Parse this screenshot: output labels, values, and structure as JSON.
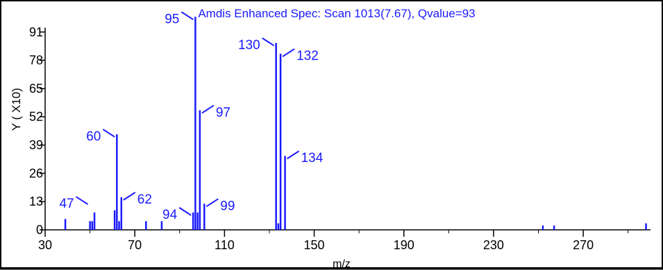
{
  "chart_data": {
    "type": "bar",
    "title": "Amdis Enhanced Spec: Scan 1013(7.67), Qvalue=93",
    "xlabel": "m/z",
    "ylabel": "Y ( X10)",
    "xlim": [
      30,
      300
    ],
    "ylim": [
      0,
      100
    ],
    "xticks": [
      30,
      70,
      110,
      150,
      190,
      230,
      270
    ],
    "yticks": [
      0,
      13,
      26,
      39,
      52,
      65,
      78,
      91
    ],
    "x_tick_labels": [
      "30",
      "70",
      "110",
      "150",
      "190",
      "230",
      "270"
    ],
    "y_tick_labels": [
      "0",
      "13",
      "26",
      "39",
      "52",
      "65",
      "78",
      "91"
    ],
    "grid": false,
    "colors": {
      "bars": "#1a1aff",
      "axes": "#000000",
      "labels": "#1a1aff"
    },
    "peaks": [
      {
        "mz": 39,
        "intensity": 5
      },
      {
        "mz": 50,
        "intensity": 4
      },
      {
        "mz": 51,
        "intensity": 4
      },
      {
        "mz": 52,
        "intensity": 8
      },
      {
        "mz": 61,
        "intensity": 9
      },
      {
        "mz": 62,
        "intensity": 44
      },
      {
        "mz": 63,
        "intensity": 4
      },
      {
        "mz": 64,
        "intensity": 15
      },
      {
        "mz": 75,
        "intensity": 4
      },
      {
        "mz": 82,
        "intensity": 4
      },
      {
        "mz": 96,
        "intensity": 8
      },
      {
        "mz": 97,
        "intensity": 98
      },
      {
        "mz": 98,
        "intensity": 8
      },
      {
        "mz": 99,
        "intensity": 55
      },
      {
        "mz": 101,
        "intensity": 12
      },
      {
        "mz": 133,
        "intensity": 86
      },
      {
        "mz": 134,
        "intensity": 3
      },
      {
        "mz": 135,
        "intensity": 81
      },
      {
        "mz": 137,
        "intensity": 34
      },
      {
        "mz": 252,
        "intensity": 2
      },
      {
        "mz": 257,
        "intensity": 2
      },
      {
        "mz": 298,
        "intensity": 3
      }
    ],
    "annotations": [
      {
        "text": "47",
        "mz": 50,
        "intensity": 13,
        "side": "left"
      },
      {
        "text": "60",
        "mz": 62,
        "intensity": 44,
        "side": "left"
      },
      {
        "text": "62",
        "mz": 64,
        "intensity": 15,
        "side": "right"
      },
      {
        "text": "94",
        "mz": 96,
        "intensity": 8,
        "side": "left"
      },
      {
        "text": "95",
        "mz": 97,
        "intensity": 98,
        "side": "left"
      },
      {
        "text": "97",
        "mz": 99,
        "intensity": 55,
        "side": "right"
      },
      {
        "text": "99",
        "mz": 101,
        "intensity": 12,
        "side": "right"
      },
      {
        "text": "130",
        "mz": 133,
        "intensity": 86,
        "side": "left"
      },
      {
        "text": "132",
        "mz": 135,
        "intensity": 81,
        "side": "right"
      },
      {
        "text": "134",
        "mz": 137,
        "intensity": 34,
        "side": "right"
      }
    ]
  }
}
